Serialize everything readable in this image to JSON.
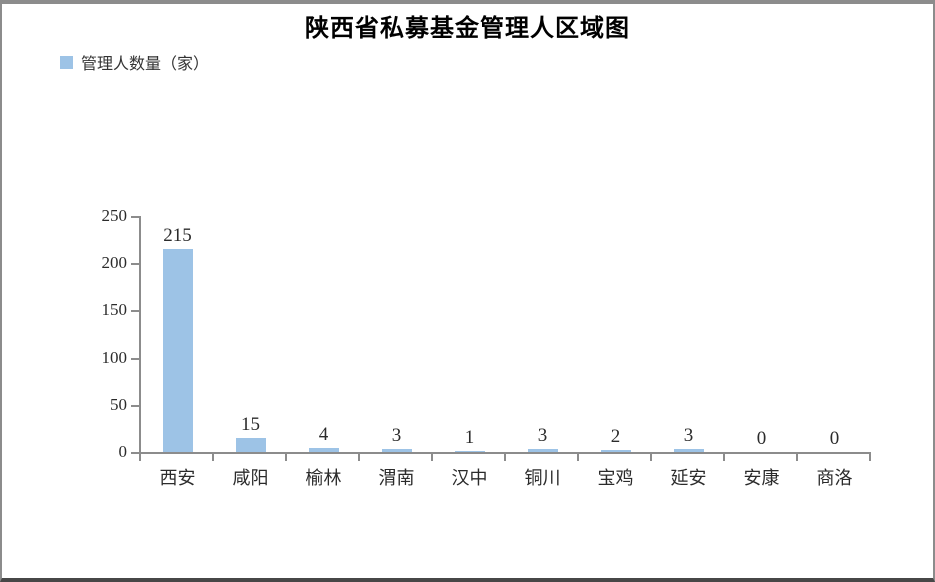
{
  "page": {
    "title": "陕西省私募基金管理人区域图"
  },
  "legend": {
    "label": "管理人数量（家）"
  },
  "colors": {
    "bar": "#9dc3e6",
    "axis": "#8c8c8c",
    "text": "#2b2b2b",
    "frame": "#8c8c8c",
    "frame_bottom": "#474747"
  },
  "chart_data": {
    "type": "bar",
    "title": "陕西省私募基金管理人区域图",
    "categories": [
      "西安",
      "咸阳",
      "榆林",
      "渭南",
      "汉中",
      "铜川",
      "宝鸡",
      "延安",
      "安康",
      "商洛"
    ],
    "series": [
      {
        "name": "管理人数量（家）",
        "values": [
          215,
          15,
          4,
          3,
          1,
          3,
          2,
          3,
          0,
          0
        ]
      }
    ],
    "xlabel": "",
    "ylabel": "",
    "ylim": [
      0,
      250
    ],
    "yticks": [
      0,
      50,
      100,
      150,
      200,
      250
    ],
    "grid": false,
    "legend_position": "top-left",
    "value_labels": true
  }
}
